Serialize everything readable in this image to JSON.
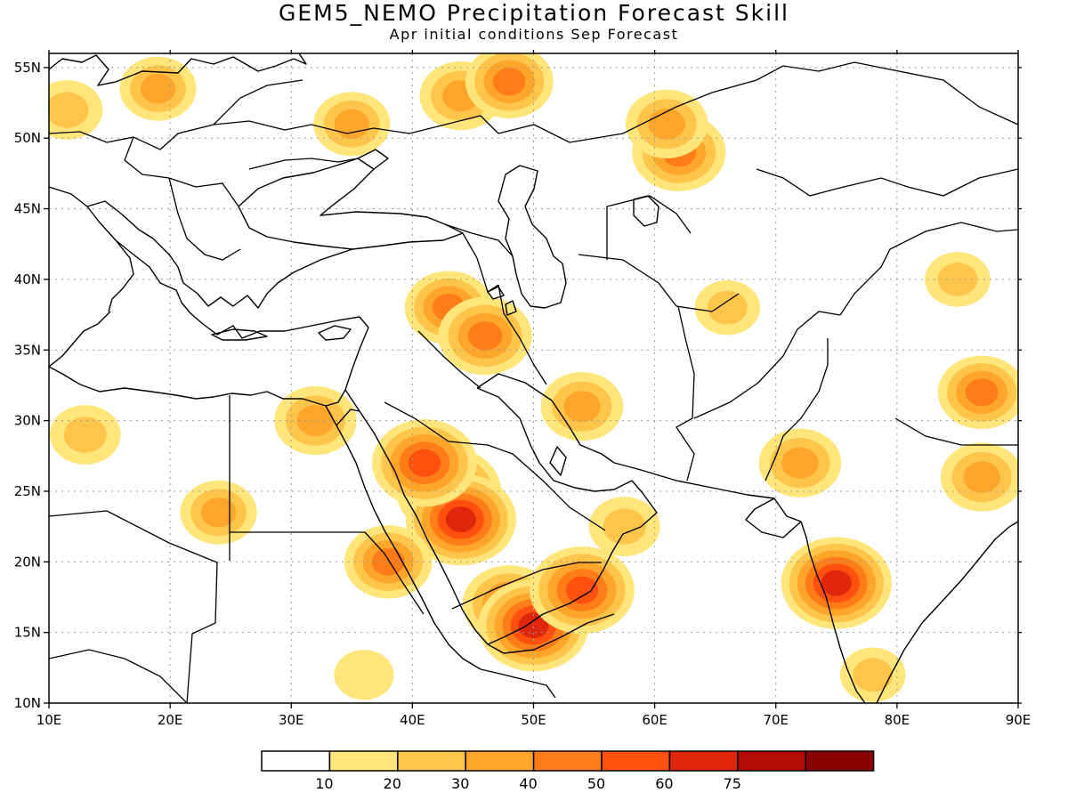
{
  "header": {
    "title": "GEM5_NEMO Precipitation Forecast Skill",
    "subtitle": "Apr initial conditions  Sep Forecast"
  },
  "map": {
    "lon_range": [
      10,
      90
    ],
    "lat_range": [
      10,
      56
    ],
    "lon_ticks": [
      "10E",
      "20E",
      "30E",
      "40E",
      "50E",
      "60E",
      "70E",
      "80E",
      "90E"
    ],
    "lat_ticks": [
      "10N",
      "15N",
      "20N",
      "25N",
      "30N",
      "35N",
      "40N",
      "45N",
      "50N",
      "55N"
    ],
    "grid": true,
    "coastline_color": "#000000"
  },
  "colorbar": {
    "labels": [
      "10",
      "20",
      "30",
      "40",
      "50",
      "60",
      "75"
    ],
    "colors": [
      "#ffffff",
      "#ffe57a",
      "#ffc44a",
      "#ffa529",
      "#ff7c17",
      "#ff5010",
      "#e0260c",
      "#b30a05",
      "#8b0000"
    ]
  },
  "chart_data": {
    "type": "heatmap",
    "title": "GEM5_NEMO Precipitation Forecast Skill",
    "subtitle": "Apr initial conditions  Sep Forecast",
    "x_axis": "longitude",
    "xlim": [
      10,
      90
    ],
    "y_axis": "latitude",
    "ylim": [
      10,
      56
    ],
    "levels": [
      10,
      20,
      30,
      40,
      50,
      60,
      75
    ],
    "grid": true,
    "regions": [
      {
        "lon": 43,
        "lat": 25,
        "value": 55
      },
      {
        "lon": 44,
        "lat": 23,
        "value": 60
      },
      {
        "lon": 41,
        "lat": 27,
        "value": 55
      },
      {
        "lon": 38,
        "lat": 20,
        "value": 40
      },
      {
        "lon": 48,
        "lat": 17,
        "value": 45
      },
      {
        "lon": 50,
        "lat": 15.5,
        "value": 60
      },
      {
        "lon": 54,
        "lat": 18,
        "value": 55
      },
      {
        "lon": 75,
        "lat": 18.5,
        "value": 60
      },
      {
        "lon": 72,
        "lat": 27,
        "value": 35
      },
      {
        "lon": 87,
        "lat": 32,
        "value": 40
      },
      {
        "lon": 87,
        "lat": 26,
        "value": 35
      },
      {
        "lon": 43,
        "lat": 38,
        "value": 40
      },
      {
        "lon": 46,
        "lat": 36,
        "value": 45
      },
      {
        "lon": 54,
        "lat": 31,
        "value": 35
      },
      {
        "lon": 44,
        "lat": 53,
        "value": 35
      },
      {
        "lon": 48,
        "lat": 54,
        "value": 40
      },
      {
        "lon": 62,
        "lat": 49,
        "value": 45
      },
      {
        "lon": 61,
        "lat": 51,
        "value": 35
      },
      {
        "lon": 35,
        "lat": 51,
        "value": 30
      },
      {
        "lon": 19,
        "lat": 53.5,
        "value": 30
      },
      {
        "lon": 11.5,
        "lat": 52,
        "value": 25
      },
      {
        "lon": 24,
        "lat": 23.5,
        "value": 30
      },
      {
        "lon": 13,
        "lat": 29,
        "value": 25
      },
      {
        "lon": 32,
        "lat": 30,
        "value": 35
      },
      {
        "lon": 57.5,
        "lat": 22.5,
        "value": 25
      },
      {
        "lon": 66,
        "lat": 38,
        "value": 20
      },
      {
        "lon": 85,
        "lat": 40,
        "value": 20
      },
      {
        "lon": 36,
        "lat": 12,
        "value": 15
      },
      {
        "lon": 78,
        "lat": 12,
        "value": 20
      }
    ]
  }
}
